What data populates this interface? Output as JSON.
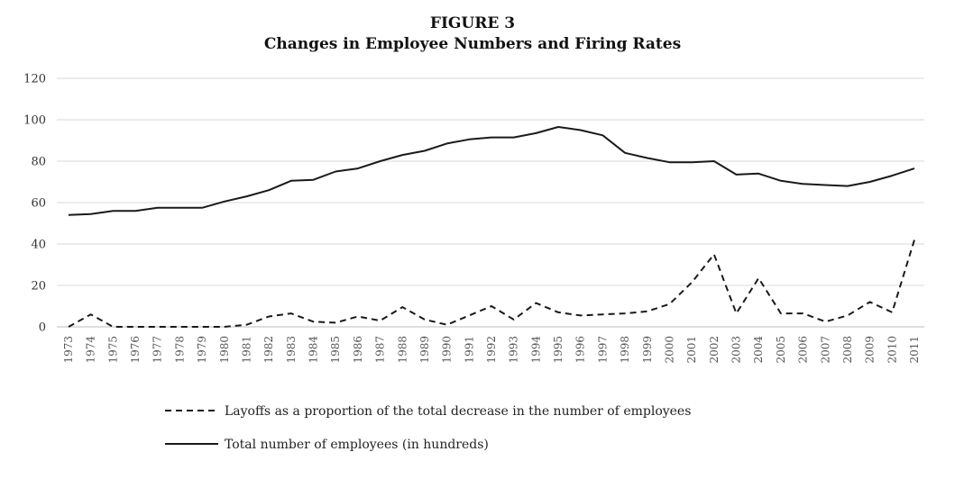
{
  "chart_data": {
    "type": "line",
    "title": "FIGURE 3",
    "subtitle": "Changes in Employee Numbers and Firing Rates",
    "xlabel": "",
    "ylabel": "",
    "ylim": [
      0,
      120
    ],
    "yticks": [
      0,
      20,
      40,
      60,
      80,
      100,
      120
    ],
    "grid": true,
    "legend_position": "bottom",
    "x": [
      "1973",
      "1974",
      "1975",
      "1976",
      "1977",
      "1978",
      "1979",
      "1980",
      "1981",
      "1982",
      "1983",
      "1984",
      "1985",
      "1986",
      "1987",
      "1988",
      "1989",
      "1990",
      "1991",
      "1992",
      "1993",
      "1994",
      "1995",
      "1996",
      "1997",
      "1998",
      "1999",
      "2000",
      "2001",
      "2002",
      "2003",
      "2004",
      "2005",
      "2006",
      "2007",
      "2008",
      "2009",
      "2010",
      "2011"
    ],
    "series": [
      {
        "name": "Layoffs as a proportion of the total decrease in the number of employees",
        "style": "dashed",
        "color": "#1a1a1a",
        "values": [
          0,
          6,
          0,
          0,
          0,
          0,
          0,
          0,
          1,
          5,
          6.5,
          2.5,
          2,
          5,
          3,
          9.5,
          3.5,
          1,
          5.5,
          10,
          3.5,
          11.5,
          7,
          5.5,
          6,
          6.5,
          7.5,
          11,
          21.5,
          35,
          6.5,
          23.5,
          6.5,
          6.5,
          2.5,
          5.5,
          12,
          7,
          42
        ]
      },
      {
        "name": "Total number of employees (in hundreds)",
        "style": "solid",
        "color": "#1a1a1a",
        "values": [
          54,
          54.5,
          56,
          56,
          57.5,
          57.5,
          57.5,
          60.5,
          63,
          66,
          70.5,
          71,
          75,
          76.5,
          80,
          83,
          85,
          88.5,
          90.5,
          91.5,
          91.5,
          93.5,
          96.5,
          95,
          92.5,
          84,
          81.5,
          79.5,
          79.5,
          80,
          73.5,
          74,
          70.5,
          69,
          68.5,
          68,
          70,
          73,
          76.5
        ]
      }
    ]
  }
}
